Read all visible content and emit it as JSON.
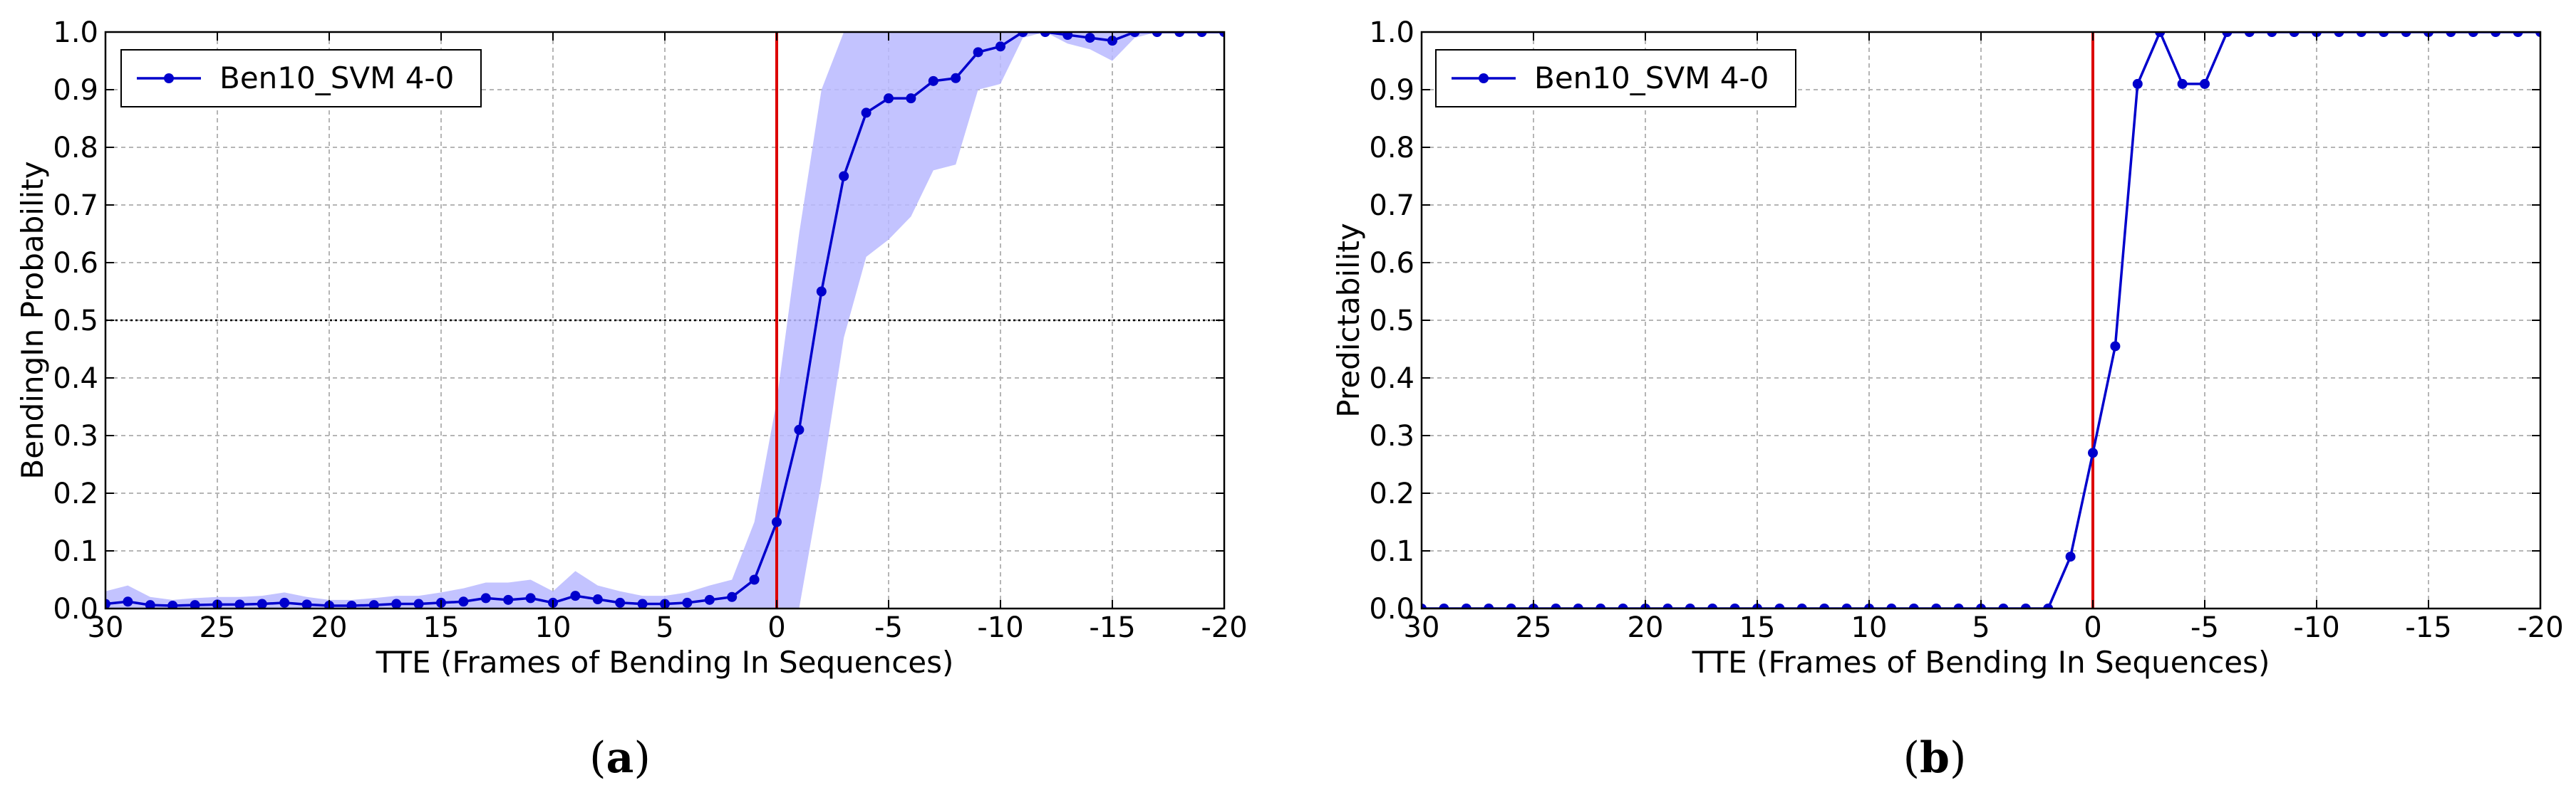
{
  "chart_data": [
    {
      "type": "line",
      "panel_label": "(a)",
      "caption_open": "(",
      "caption_letter": "a",
      "caption_close": ")",
      "ylabel": "BendingIn Probability",
      "xlabel": "TTE (Frames of Bending In Sequences)",
      "xlim": [
        30,
        -20
      ],
      "ylim": [
        0.0,
        1.0
      ],
      "x_ticks": [
        30,
        25,
        20,
        15,
        10,
        5,
        0,
        -5,
        -10,
        -15,
        -20
      ],
      "x_tick_labels": [
        "30",
        "25",
        "20",
        "15",
        "10",
        "5",
        "0",
        "-5",
        "-10",
        "-15",
        "-20"
      ],
      "y_ticks": [
        0.0,
        0.1,
        0.2,
        0.3,
        0.4,
        0.5,
        0.6,
        0.7,
        0.8,
        0.9,
        1.0
      ],
      "y_tick_labels": [
        "0.0",
        "0.1",
        "0.2",
        "0.3",
        "0.4",
        "0.5",
        "0.6",
        "0.7",
        "0.8",
        "0.9",
        "1.0"
      ],
      "grid": true,
      "legend_position": "top-left",
      "vertical_line_x": 0,
      "vertical_line_color": "#dd0000",
      "threshold_y": 0.5,
      "series": [
        {
          "name": "Ben10_SVM 4-0",
          "color": "#0000cc",
          "band_color": "#b8b8ff",
          "x": [
            30,
            29,
            28,
            27,
            26,
            25,
            24,
            23,
            22,
            21,
            20,
            19,
            18,
            17,
            16,
            15,
            14,
            13,
            12,
            11,
            10,
            9,
            8,
            7,
            6,
            5,
            4,
            3,
            2,
            1,
            0,
            -1,
            -2,
            -3,
            -4,
            -5,
            -6,
            -7,
            -8,
            -9,
            -10,
            -11,
            -12,
            -13,
            -14,
            -15,
            -16,
            -17,
            -18,
            -19,
            -20
          ],
          "y": [
            0.008,
            0.012,
            0.006,
            0.005,
            0.006,
            0.007,
            0.007,
            0.008,
            0.01,
            0.007,
            0.005,
            0.005,
            0.006,
            0.008,
            0.008,
            0.01,
            0.012,
            0.018,
            0.015,
            0.018,
            0.01,
            0.022,
            0.016,
            0.01,
            0.008,
            0.008,
            0.01,
            0.015,
            0.02,
            0.05,
            0.15,
            0.31,
            0.55,
            0.75,
            0.86,
            0.885,
            0.885,
            0.915,
            0.92,
            0.965,
            0.975,
            1.0,
            1.0,
            0.995,
            0.99,
            0.985,
            1.0,
            1.0,
            1.0,
            1.0,
            1.0
          ],
          "upper": [
            0.03,
            0.04,
            0.02,
            0.015,
            0.018,
            0.02,
            0.02,
            0.022,
            0.028,
            0.02,
            0.015,
            0.015,
            0.018,
            0.022,
            0.022,
            0.028,
            0.035,
            0.045,
            0.045,
            0.05,
            0.03,
            0.065,
            0.04,
            0.03,
            0.022,
            0.022,
            0.028,
            0.04,
            0.05,
            0.15,
            0.36,
            0.65,
            0.9,
            1.0,
            1.0,
            1.0,
            1.0,
            1.0,
            1.0,
            1.0,
            1.0,
            1.0,
            1.0,
            1.0,
            1.0,
            1.0,
            1.0,
            1.0,
            1.0,
            1.0,
            1.0
          ],
          "lower": [
            0.0,
            0.0,
            0.0,
            0.0,
            0.0,
            0.0,
            0.0,
            0.0,
            0.0,
            0.0,
            0.0,
            0.0,
            0.0,
            0.0,
            0.0,
            0.0,
            0.0,
            0.0,
            0.0,
            0.0,
            0.0,
            0.0,
            0.0,
            0.0,
            0.0,
            0.0,
            0.0,
            0.0,
            0.0,
            0.0,
            0.0,
            0.0,
            0.22,
            0.47,
            0.61,
            0.64,
            0.68,
            0.76,
            0.77,
            0.9,
            0.91,
            0.99,
            1.0,
            0.98,
            0.97,
            0.95,
            0.99,
            1.0,
            1.0,
            1.0,
            1.0
          ]
        }
      ]
    },
    {
      "type": "line",
      "panel_label": "(b)",
      "caption_open": "(",
      "caption_letter": "b",
      "caption_close": ")",
      "ylabel": "Predictability",
      "xlabel": "TTE (Frames of Bending In Sequences)",
      "xlim": [
        30,
        -20
      ],
      "ylim": [
        0.0,
        1.0
      ],
      "x_ticks": [
        30,
        25,
        20,
        15,
        10,
        5,
        0,
        -5,
        -10,
        -15,
        -20
      ],
      "x_tick_labels": [
        "30",
        "25",
        "20",
        "15",
        "10",
        "5",
        "0",
        "-5",
        "-10",
        "-15",
        "-20"
      ],
      "y_ticks": [
        0.0,
        0.1,
        0.2,
        0.3,
        0.4,
        0.5,
        0.6,
        0.7,
        0.8,
        0.9,
        1.0
      ],
      "y_tick_labels": [
        "0.0",
        "0.1",
        "0.2",
        "0.3",
        "0.4",
        "0.5",
        "0.6",
        "0.7",
        "0.8",
        "0.9",
        "1.0"
      ],
      "grid": true,
      "legend_position": "top-left",
      "vertical_line_x": 0,
      "vertical_line_color": "#dd0000",
      "series": [
        {
          "name": "Ben10_SVM 4-0",
          "color": "#0000cc",
          "x": [
            30,
            29,
            28,
            27,
            26,
            25,
            24,
            23,
            22,
            21,
            20,
            19,
            18,
            17,
            16,
            15,
            14,
            13,
            12,
            11,
            10,
            9,
            8,
            7,
            6,
            5,
            4,
            3,
            2,
            1,
            0,
            -1,
            -2,
            -3,
            -4,
            -5,
            -6,
            -7,
            -8,
            -9,
            -10,
            -11,
            -12,
            -13,
            -14,
            -15,
            -16,
            -17,
            -18,
            -19,
            -20
          ],
          "y": [
            0.0,
            0.0,
            0.0,
            0.0,
            0.0,
            0.0,
            0.0,
            0.0,
            0.0,
            0.0,
            0.0,
            0.0,
            0.0,
            0.0,
            0.0,
            0.0,
            0.0,
            0.0,
            0.0,
            0.0,
            0.0,
            0.0,
            0.0,
            0.0,
            0.0,
            0.0,
            0.0,
            0.0,
            0.0,
            0.09,
            0.27,
            0.455,
            0.91,
            1.0,
            0.91,
            0.91,
            1.0,
            1.0,
            1.0,
            1.0,
            1.0,
            1.0,
            1.0,
            1.0,
            1.0,
            1.0,
            1.0,
            1.0,
            1.0,
            1.0,
            1.0
          ]
        }
      ]
    }
  ]
}
